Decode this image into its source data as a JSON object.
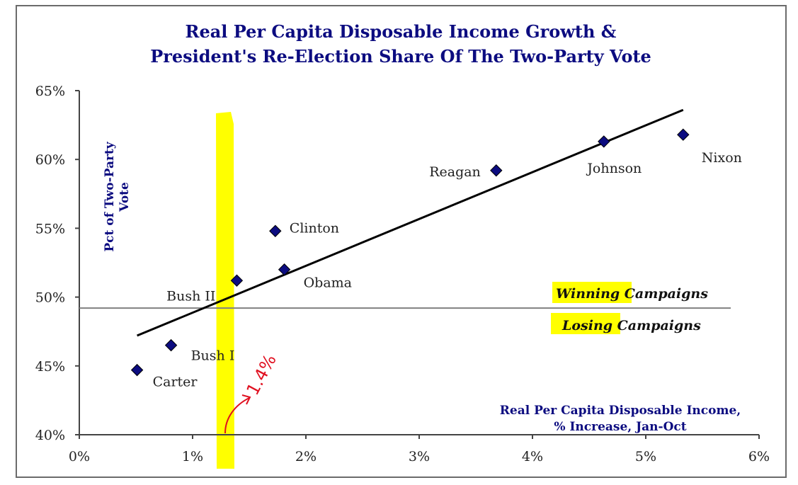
{
  "chart_data": {
    "type": "scatter",
    "title": [
      "Real Per Capita Disposable Income Growth &",
      "President's Re-Election Share Of The Two-Party Vote"
    ],
    "xlabel": [
      "Real Per Capita Disposable Income,",
      "% Increase, Jan-Oct"
    ],
    "ylabel": [
      "Pct of Two-Party",
      "Vote"
    ],
    "xlim": [
      0,
      6
    ],
    "ylim": [
      40,
      65
    ],
    "x_ticks": [
      0,
      1,
      2,
      3,
      4,
      5,
      6
    ],
    "x_tick_labels": [
      "0%",
      "1%",
      "2%",
      "3%",
      "4%",
      "5%",
      "6%"
    ],
    "y_ticks": [
      40,
      45,
      50,
      55,
      60,
      65
    ],
    "y_tick_labels": [
      "40%",
      "45%",
      "50%",
      "55%",
      "60%",
      "65%"
    ],
    "grid": false,
    "points": [
      {
        "label": "Carter",
        "x": 0.51,
        "y": 44.7
      },
      {
        "label": "Bush I",
        "x": 0.81,
        "y": 46.5
      },
      {
        "label": "Bush II",
        "x": 1.39,
        "y": 51.2
      },
      {
        "label": "Clinton",
        "x": 1.73,
        "y": 54.8
      },
      {
        "label": "Obama",
        "x": 1.81,
        "y": 52.0
      },
      {
        "label": "Reagan",
        "x": 3.68,
        "y": 59.2
      },
      {
        "label": "Johnson",
        "x": 4.63,
        "y": 61.3
      },
      {
        "label": "Nixon",
        "x": 5.33,
        "y": 61.8
      }
    ],
    "trendline": {
      "x": [
        0.51,
        5.33
      ],
      "y": [
        47.2,
        63.6
      ]
    },
    "threshold_line": {
      "y": 49.2,
      "x": [
        0,
        5.75
      ]
    },
    "zone_labels": {
      "above": {
        "highlighted": "Winning",
        "rest": " Campaigns"
      },
      "below": {
        "highlighted": "Losing",
        "rest": " Campaigns"
      }
    },
    "annotation": {
      "text": "1.4%",
      "x_value": 1.4,
      "note": "handwritten highlight band and arrow at x ≈ 1.3%"
    },
    "colors": {
      "title": "#0c0c80",
      "marker": "#0c0c80",
      "trendline": "#000000",
      "threshold": "#808080",
      "highlight": "#ffff00",
      "annotation": "#e01020"
    }
  }
}
